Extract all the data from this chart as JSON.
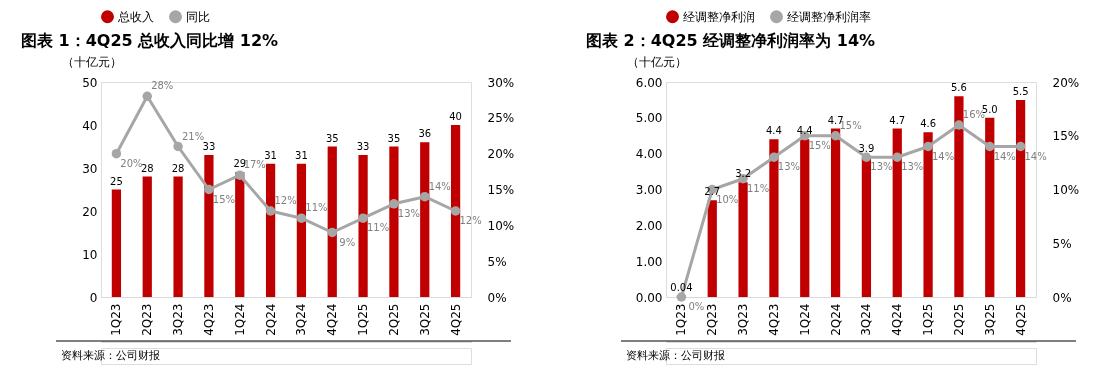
{
  "chart_data": [
    {
      "type": "bar",
      "title": "图表 1：4Q25 总收入同比增 12%",
      "ylabel": "（十亿元）",
      "annotations": [
        "资料来源：公司财报"
      ],
      "categories": [
        "1Q23",
        "2Q23",
        "3Q23",
        "4Q23",
        "1Q24",
        "2Q24",
        "3Q24",
        "4Q24",
        "1Q25",
        "2Q25",
        "3Q25",
        "4Q25"
      ],
      "series": [
        {
          "name": "总收入",
          "color": "#c00000",
          "values": [
            25,
            28,
            28,
            33,
            29,
            31,
            31,
            35,
            33,
            35,
            36,
            40
          ],
          "value_labels": [
            "25",
            "28",
            "28",
            "33",
            "29",
            "31",
            "31",
            "35",
            "33",
            "35",
            "36",
            "40"
          ]
        },
        {
          "name": "同比",
          "type": "line",
          "axis": "y2",
          "color": "#a6a6a6",
          "values": [
            20,
            28,
            21,
            15,
            17,
            12,
            11,
            9,
            11,
            13,
            14,
            12
          ],
          "value_labels": [
            "20%",
            "28%",
            "21%",
            "15%",
            "17%",
            "12%",
            "11%",
            "9%",
            "11%",
            "13%",
            "14%",
            "12%"
          ]
        }
      ],
      "ylim": [
        0,
        50
      ],
      "yticks": [
        0,
        10,
        20,
        30,
        40,
        50
      ],
      "y2lim": [
        0,
        30
      ],
      "y2ticks": [
        {
          "value": 0,
          "label": "0%"
        },
        {
          "value": 5,
          "label": "5%"
        },
        {
          "value": 10,
          "label": "10%"
        },
        {
          "value": 15,
          "label": "15%"
        },
        {
          "value": 20,
          "label": "20%"
        },
        {
          "value": 25,
          "label": "25%"
        },
        {
          "value": 30,
          "label": "30%"
        }
      ],
      "marker": "circle",
      "legend": "top",
      "grid": false
    },
    {
      "type": "bar",
      "title": "图表 2：4Q25 经调整净利润率为 14%",
      "ylabel": "（十亿元）",
      "annotations": [
        "资料来源：公司财报"
      ],
      "categories": [
        "1Q23",
        "2Q23",
        "3Q23",
        "4Q23",
        "1Q24",
        "2Q24",
        "3Q24",
        "4Q24",
        "1Q25",
        "2Q25",
        "3Q25",
        "4Q25"
      ],
      "series": [
        {
          "name": "经调整净利润",
          "color": "#c00000",
          "values": [
            0.04,
            2.7,
            3.2,
            4.4,
            4.4,
            4.7,
            3.9,
            4.7,
            4.6,
            5.6,
            5.0,
            5.5
          ],
          "value_labels": [
            "0.04",
            "2.7",
            "3.2",
            "4.4",
            "4.4",
            "4.7",
            "3.9",
            "4.7",
            "4.6",
            "5.6",
            "5.0",
            "5.5"
          ]
        },
        {
          "name": "经调整净利润率",
          "type": "line",
          "axis": "y2",
          "color": "#a6a6a6",
          "values": [
            0,
            10,
            11,
            13,
            15,
            15,
            13,
            13,
            14,
            16,
            14,
            14
          ],
          "value_labels": [
            "0%",
            "10%",
            "11%",
            "13%",
            "15%",
            "15%",
            "13%",
            "13%",
            "14%",
            "16%",
            "14%",
            "14%"
          ]
        }
      ],
      "ylim": [
        0,
        6
      ],
      "yticks": [
        {
          "value": 0,
          "label": "0.00"
        },
        {
          "value": 1,
          "label": "1.00"
        },
        {
          "value": 2,
          "label": "2.00"
        },
        {
          "value": 3,
          "label": "3.00"
        },
        {
          "value": 4,
          "label": "4.00"
        },
        {
          "value": 5,
          "label": "5.00"
        },
        {
          "value": 6,
          "label": "6.00"
        }
      ],
      "y2lim": [
        0,
        20
      ],
      "y2ticks": [
        {
          "value": 0,
          "label": "0%"
        },
        {
          "value": 5,
          "label": "5%"
        },
        {
          "value": 10,
          "label": "10%"
        },
        {
          "value": 15,
          "label": "15%"
        },
        {
          "value": 20,
          "label": "20%"
        }
      ],
      "marker": "circle",
      "legend": "top",
      "grid": false
    }
  ]
}
